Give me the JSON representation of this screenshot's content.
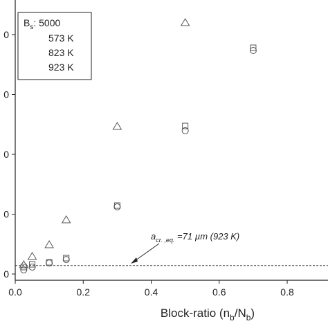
{
  "chart_data": {
    "type": "scatter",
    "x_label": {
      "main": "Block-ratio (n",
      "sub1": "b",
      "mid": "/N",
      "sub2": "b",
      "end": ")"
    },
    "legend_title": {
      "main": "B",
      "sub": "s",
      "rest": ": 5000"
    },
    "xlim": [
      0,
      0.92
    ],
    "ylim": [
      -52,
      2289
    ],
    "xticks": [
      {
        "value": 0,
        "label": "0.0"
      },
      0.2,
      0.4,
      0.6,
      0.8
    ],
    "yticks": [
      {
        "value": 0,
        "label": "0"
      },
      {
        "value": 500,
        "label": "0"
      },
      {
        "value": 1000,
        "label": "0"
      },
      {
        "value": 1500,
        "label": "0"
      },
      {
        "value": 2000,
        "label": "0"
      }
    ],
    "series": [
      {
        "name": "573 K",
        "marker": "square",
        "color": "#555555",
        "x": [
          0.025,
          0.05,
          0.1,
          0.15,
          0.3,
          0.5,
          0.7
        ],
        "values": [
          58,
          81,
          98,
          133,
          572,
          1237,
          1890
        ]
      },
      {
        "name": "823 K",
        "marker": "circle",
        "color": "#555555",
        "x": [
          0.025,
          0.05,
          0.1,
          0.15,
          0.3,
          0.5,
          0.7
        ],
        "values": [
          35,
          58,
          92,
          121,
          561,
          1197,
          1867
        ]
      },
      {
        "name": "923 K",
        "marker": "triangle",
        "color": "#555555",
        "x": [
          0.025,
          0.05,
          0.1,
          0.15,
          0.3,
          0.5
        ],
        "values": [
          75,
          145,
          243,
          451,
          1231,
          2098
        ]
      }
    ],
    "threshold": {
      "value": 71,
      "label": {
        "main": "a",
        "sub": "cr. ,eq.",
        "rest": " =71 µm (923 K)"
      }
    }
  }
}
